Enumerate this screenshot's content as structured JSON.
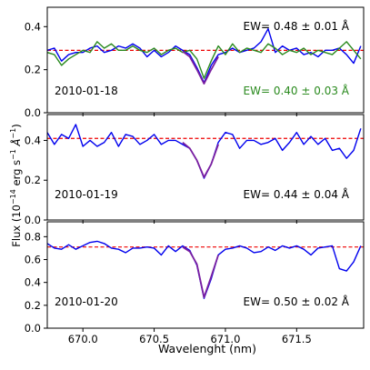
{
  "chart_data": {
    "type": "line",
    "ylabel": "Flux (10$^{-14}$ erg s$^{-1}$ Å$^{-1}$)",
    "ylabel_parts": {
      "pre": "Flux (10",
      "exp1": "−14",
      "mid": " erg s",
      "exp2": "−1",
      "mid2": " ",
      "unit": "Å",
      "exp3": "−1",
      "post": ")"
    },
    "xlabel": "Wavelenght (nm)",
    "xlim": [
      669.75,
      671.97
    ],
    "xticks": [
      670.0,
      670.5,
      671.0,
      671.5
    ],
    "xtick_labels": [
      "670.0",
      "670.5",
      "671.0",
      "671.5"
    ],
    "colors": {
      "blue": "#0000ee",
      "green": "#2a8a1e",
      "purple": "#7a1fa0",
      "continuum": "#ee0000",
      "axes": "#000000"
    },
    "panels": [
      {
        "date": "2010-01-18",
        "ylim": [
          0.0,
          0.49
        ],
        "yticks": [
          0.0,
          0.2,
          0.4
        ],
        "ytick_labels": [
          "0.0",
          "0.2",
          "0.4"
        ],
        "continuum": 0.29,
        "annotations": [
          {
            "text": "EW= 0.48 ±  0.01 Å",
            "color": "#000000"
          },
          {
            "text": "EW= 0.40 ±  0.03 Å",
            "color": "#2a8a1e"
          }
        ],
        "series": [
          {
            "color": "#0000ee",
            "x": [
              669.75,
              669.8,
              669.85,
              669.9,
              669.95,
              670.0,
              670.05,
              670.1,
              670.15,
              670.2,
              670.25,
              670.3,
              670.35,
              670.4,
              670.45,
              670.5,
              670.55,
              670.6,
              670.65,
              670.7,
              670.75,
              670.8,
              670.85,
              670.9,
              670.95,
              671.0,
              671.05,
              671.1,
              671.15,
              671.2,
              671.25,
              671.3,
              671.35,
              671.4,
              671.45,
              671.5,
              671.55,
              671.6,
              671.65,
              671.7,
              671.75,
              671.8,
              671.85,
              671.9,
              671.95
            ],
            "y": [
              0.29,
              0.3,
              0.24,
              0.27,
              0.28,
              0.28,
              0.3,
              0.31,
              0.28,
              0.29,
              0.31,
              0.3,
              0.32,
              0.3,
              0.26,
              0.29,
              0.26,
              0.28,
              0.31,
              0.29,
              0.27,
              0.21,
              0.14,
              0.22,
              0.27,
              0.28,
              0.3,
              0.28,
              0.29,
              0.3,
              0.33,
              0.39,
              0.28,
              0.31,
              0.29,
              0.3,
              0.27,
              0.28,
              0.26,
              0.29,
              0.29,
              0.3,
              0.27,
              0.23,
              0.31
            ]
          },
          {
            "color": "#2a8a1e",
            "x": [
              669.75,
              669.8,
              669.85,
              669.9,
              669.95,
              670.0,
              670.05,
              670.1,
              670.15,
              670.2,
              670.25,
              670.3,
              670.35,
              670.4,
              670.45,
              670.5,
              670.55,
              670.6,
              670.65,
              670.7,
              670.75,
              670.8,
              670.85,
              670.9,
              670.95,
              671.0,
              671.05,
              671.1,
              671.15,
              671.2,
              671.25,
              671.3,
              671.35,
              671.4,
              671.45,
              671.5,
              671.55,
              671.6,
              671.65,
              671.7,
              671.75,
              671.8,
              671.85,
              671.9,
              671.95
            ],
            "y": [
              0.28,
              0.27,
              0.22,
              0.25,
              0.27,
              0.29,
              0.28,
              0.33,
              0.3,
              0.32,
              0.29,
              0.29,
              0.31,
              0.29,
              0.28,
              0.3,
              0.27,
              0.29,
              0.3,
              0.28,
              0.29,
              0.25,
              0.16,
              0.24,
              0.31,
              0.27,
              0.32,
              0.28,
              0.3,
              0.29,
              0.28,
              0.32,
              0.3,
              0.27,
              0.29,
              0.28,
              0.3,
              0.27,
              0.29,
              0.28,
              0.27,
              0.3,
              0.33,
              0.29,
              0.25
            ]
          },
          {
            "color": "#7a1fa0",
            "x": [
              670.7,
              670.75,
              670.8,
              670.85,
              670.9,
              670.95
            ],
            "y": [
              0.285,
              0.26,
              0.2,
              0.135,
              0.2,
              0.26
            ]
          }
        ]
      },
      {
        "date": "2010-01-19",
        "ylim": [
          0.0,
          0.53
        ],
        "yticks": [
          0.0,
          0.2,
          0.4
        ],
        "ytick_labels": [
          "0.0",
          "0.2",
          "0.4"
        ],
        "continuum": 0.41,
        "annotations": [
          {
            "text": "EW= 0.44 ±  0.04 Å",
            "color": "#000000"
          }
        ],
        "series": [
          {
            "color": "#0000ee",
            "x": [
              669.75,
              669.8,
              669.85,
              669.9,
              669.95,
              670.0,
              670.05,
              670.1,
              670.15,
              670.2,
              670.25,
              670.3,
              670.35,
              670.4,
              670.45,
              670.5,
              670.55,
              670.6,
              670.65,
              670.7,
              670.75,
              670.8,
              670.85,
              670.9,
              670.95,
              671.0,
              671.05,
              671.1,
              671.15,
              671.2,
              671.25,
              671.3,
              671.35,
              671.4,
              671.45,
              671.5,
              671.55,
              671.6,
              671.65,
              671.7,
              671.75,
              671.8,
              671.85,
              671.9,
              671.95
            ],
            "y": [
              0.44,
              0.38,
              0.43,
              0.41,
              0.48,
              0.37,
              0.4,
              0.37,
              0.39,
              0.44,
              0.37,
              0.43,
              0.42,
              0.38,
              0.4,
              0.43,
              0.38,
              0.4,
              0.4,
              0.38,
              0.36,
              0.3,
              0.21,
              0.28,
              0.39,
              0.44,
              0.43,
              0.36,
              0.4,
              0.4,
              0.38,
              0.39,
              0.41,
              0.35,
              0.39,
              0.44,
              0.38,
              0.42,
              0.38,
              0.41,
              0.35,
              0.36,
              0.31,
              0.35,
              0.46
            ]
          },
          {
            "color": "#7a1fa0",
            "x": [
              670.7,
              670.75,
              670.8,
              670.85,
              670.9,
              670.95
            ],
            "y": [
              0.39,
              0.36,
              0.3,
              0.215,
              0.28,
              0.38
            ]
          }
        ]
      },
      {
        "date": "2010-01-20",
        "ylim": [
          0.0,
          0.93
        ],
        "yticks": [
          0.0,
          0.2,
          0.4,
          0.6,
          0.8
        ],
        "ytick_labels": [
          "0.0",
          "0.2",
          "0.4",
          "0.6",
          "0.8"
        ],
        "continuum": 0.71,
        "annotations": [
          {
            "text": "EW= 0.50 ±  0.02 Å",
            "color": "#000000"
          }
        ],
        "series": [
          {
            "color": "#0000ee",
            "x": [
              669.75,
              669.8,
              669.85,
              669.9,
              669.95,
              670.0,
              670.05,
              670.1,
              670.15,
              670.2,
              670.25,
              670.3,
              670.35,
              670.4,
              670.45,
              670.5,
              670.55,
              670.6,
              670.65,
              670.7,
              670.75,
              670.8,
              670.85,
              670.9,
              670.95,
              671.0,
              671.05,
              671.1,
              671.15,
              671.2,
              671.25,
              671.3,
              671.35,
              671.4,
              671.45,
              671.5,
              671.55,
              671.6,
              671.65,
              671.7,
              671.75,
              671.8,
              671.85,
              671.9,
              671.95
            ],
            "y": [
              0.74,
              0.7,
              0.69,
              0.73,
              0.69,
              0.72,
              0.75,
              0.76,
              0.74,
              0.7,
              0.69,
              0.66,
              0.7,
              0.7,
              0.71,
              0.7,
              0.64,
              0.72,
              0.67,
              0.72,
              0.68,
              0.55,
              0.26,
              0.43,
              0.64,
              0.69,
              0.7,
              0.72,
              0.7,
              0.66,
              0.67,
              0.71,
              0.68,
              0.72,
              0.7,
              0.72,
              0.69,
              0.64,
              0.7,
              0.71,
              0.72,
              0.52,
              0.5,
              0.58,
              0.72
            ]
          },
          {
            "color": "#7a1fa0",
            "x": [
              670.7,
              670.75,
              670.8,
              670.85,
              670.9,
              670.95
            ],
            "y": [
              0.71,
              0.67,
              0.56,
              0.27,
              0.45,
              0.64
            ]
          }
        ]
      }
    ]
  }
}
